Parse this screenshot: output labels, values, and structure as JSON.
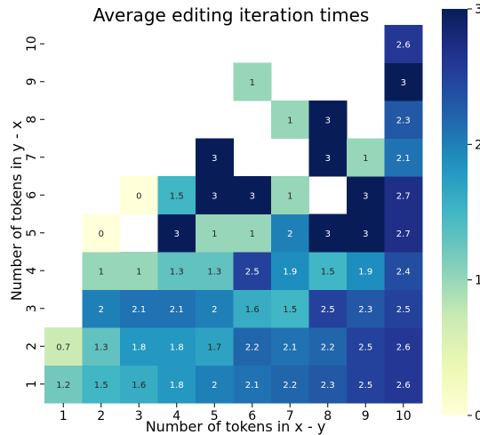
{
  "chart_data": {
    "type": "heatmap",
    "title": "Average editing iteration times",
    "xlabel": "Number of tokens in x - y",
    "ylabel": "Number of tokens in y - x",
    "x_categories": [
      "1",
      "2",
      "3",
      "4",
      "5",
      "6",
      "7",
      "8",
      "9",
      "10"
    ],
    "y_categories": [
      "1",
      "2",
      "3",
      "4",
      "5",
      "6",
      "7",
      "8",
      "9",
      "10"
    ],
    "value_range": [
      0,
      3
    ],
    "colormap": "YlGnBu",
    "colorbar_ticks": [
      "0",
      "1",
      "2",
      "3"
    ],
    "cells": [
      {
        "x": "1",
        "y": "1",
        "value": 1.2,
        "label": "1.2"
      },
      {
        "x": "2",
        "y": "1",
        "value": 1.5,
        "label": "1.5"
      },
      {
        "x": "3",
        "y": "1",
        "value": 1.6,
        "label": "1.6"
      },
      {
        "x": "4",
        "y": "1",
        "value": 1.8,
        "label": "1.8"
      },
      {
        "x": "5",
        "y": "1",
        "value": 2.0,
        "label": "2"
      },
      {
        "x": "6",
        "y": "1",
        "value": 2.1,
        "label": "2.1"
      },
      {
        "x": "7",
        "y": "1",
        "value": 2.2,
        "label": "2.2"
      },
      {
        "x": "8",
        "y": "1",
        "value": 2.3,
        "label": "2.3"
      },
      {
        "x": "9",
        "y": "1",
        "value": 2.5,
        "label": "2.5"
      },
      {
        "x": "10",
        "y": "1",
        "value": 2.6,
        "label": "2.6"
      },
      {
        "x": "1",
        "y": "2",
        "value": 0.7,
        "label": "0.7"
      },
      {
        "x": "2",
        "y": "2",
        "value": 1.3,
        "label": "1.3"
      },
      {
        "x": "3",
        "y": "2",
        "value": 1.8,
        "label": "1.8"
      },
      {
        "x": "4",
        "y": "2",
        "value": 1.8,
        "label": "1.8"
      },
      {
        "x": "5",
        "y": "2",
        "value": 1.7,
        "label": "1.7"
      },
      {
        "x": "6",
        "y": "2",
        "value": 2.2,
        "label": "2.2"
      },
      {
        "x": "7",
        "y": "2",
        "value": 2.1,
        "label": "2.1"
      },
      {
        "x": "8",
        "y": "2",
        "value": 2.2,
        "label": "2.2"
      },
      {
        "x": "9",
        "y": "2",
        "value": 2.5,
        "label": "2.5"
      },
      {
        "x": "10",
        "y": "2",
        "value": 2.6,
        "label": "2.6"
      },
      {
        "x": "2",
        "y": "3",
        "value": 2.0,
        "label": "2"
      },
      {
        "x": "3",
        "y": "3",
        "value": 2.1,
        "label": "2.1"
      },
      {
        "x": "4",
        "y": "3",
        "value": 2.1,
        "label": "2.1"
      },
      {
        "x": "5",
        "y": "3",
        "value": 2.0,
        "label": "2"
      },
      {
        "x": "6",
        "y": "3",
        "value": 1.6,
        "label": "1.6"
      },
      {
        "x": "7",
        "y": "3",
        "value": 1.5,
        "label": "1.5"
      },
      {
        "x": "8",
        "y": "3",
        "value": 2.5,
        "label": "2.5"
      },
      {
        "x": "9",
        "y": "3",
        "value": 2.3,
        "label": "2.3"
      },
      {
        "x": "10",
        "y": "3",
        "value": 2.5,
        "label": "2.5"
      },
      {
        "x": "2",
        "y": "4",
        "value": 1.0,
        "label": "1"
      },
      {
        "x": "3",
        "y": "4",
        "value": 1.0,
        "label": "1"
      },
      {
        "x": "4",
        "y": "4",
        "value": 1.3,
        "label": "1.3"
      },
      {
        "x": "5",
        "y": "4",
        "value": 1.3,
        "label": "1.3"
      },
      {
        "x": "6",
        "y": "4",
        "value": 2.5,
        "label": "2.5"
      },
      {
        "x": "7",
        "y": "4",
        "value": 1.9,
        "label": "1.9"
      },
      {
        "x": "8",
        "y": "4",
        "value": 1.5,
        "label": "1.5"
      },
      {
        "x": "9",
        "y": "4",
        "value": 1.9,
        "label": "1.9"
      },
      {
        "x": "10",
        "y": "4",
        "value": 2.4,
        "label": "2.4"
      },
      {
        "x": "2",
        "y": "5",
        "value": 0,
        "label": "0"
      },
      {
        "x": "4",
        "y": "5",
        "value": 3,
        "label": "3"
      },
      {
        "x": "5",
        "y": "5",
        "value": 1,
        "label": "1"
      },
      {
        "x": "6",
        "y": "5",
        "value": 1,
        "label": "1"
      },
      {
        "x": "7",
        "y": "5",
        "value": 2,
        "label": "2"
      },
      {
        "x": "8",
        "y": "5",
        "value": 3,
        "label": "3"
      },
      {
        "x": "9",
        "y": "5",
        "value": 3,
        "label": "3"
      },
      {
        "x": "10",
        "y": "5",
        "value": 2.7,
        "label": "2.7"
      },
      {
        "x": "3",
        "y": "6",
        "value": 0,
        "label": "0"
      },
      {
        "x": "4",
        "y": "6",
        "value": 1.5,
        "label": "1.5"
      },
      {
        "x": "5",
        "y": "6",
        "value": 3,
        "label": "3"
      },
      {
        "x": "6",
        "y": "6",
        "value": 3,
        "label": "3"
      },
      {
        "x": "7",
        "y": "6",
        "value": 1,
        "label": "1"
      },
      {
        "x": "9",
        "y": "6",
        "value": 3,
        "label": "3"
      },
      {
        "x": "10",
        "y": "6",
        "value": 2.7,
        "label": "2.7"
      },
      {
        "x": "5",
        "y": "7",
        "value": 3,
        "label": "3"
      },
      {
        "x": "8",
        "y": "7",
        "value": 3,
        "label": "3"
      },
      {
        "x": "9",
        "y": "7",
        "value": 1,
        "label": "1"
      },
      {
        "x": "10",
        "y": "7",
        "value": 2.1,
        "label": "2.1"
      },
      {
        "x": "7",
        "y": "8",
        "value": 1,
        "label": "1"
      },
      {
        "x": "8",
        "y": "8",
        "value": 3,
        "label": "3"
      },
      {
        "x": "10",
        "y": "8",
        "value": 2.3,
        "label": "2.3"
      },
      {
        "x": "6",
        "y": "9",
        "value": 1,
        "label": "1"
      },
      {
        "x": "10",
        "y": "9",
        "value": 3,
        "label": "3"
      },
      {
        "x": "10",
        "y": "10",
        "value": 2.6,
        "label": "2.6"
      }
    ]
  }
}
